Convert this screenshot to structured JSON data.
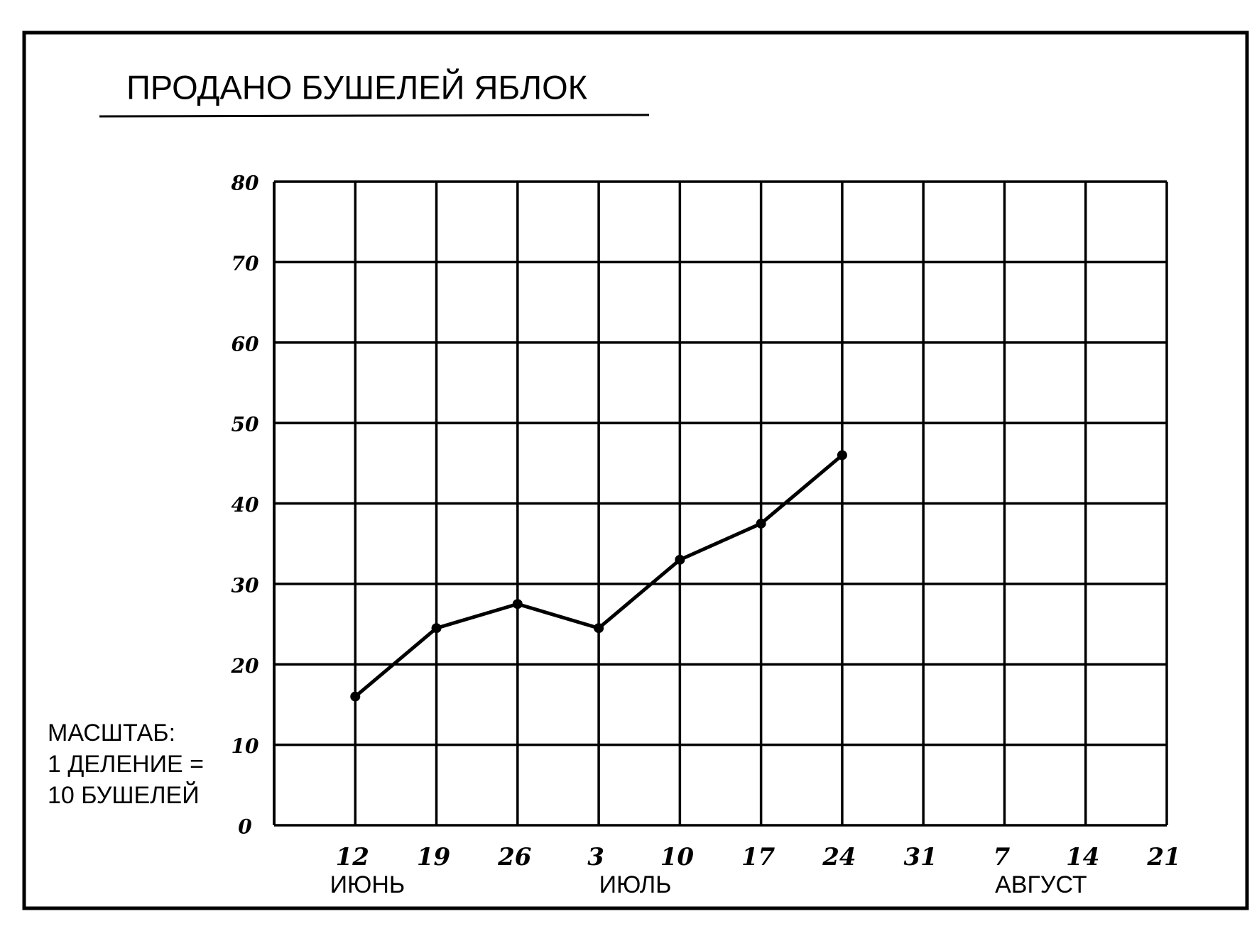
{
  "chart_data": {
    "type": "line",
    "title": "ПРОДАНО БУШЕЛЕЙ ЯБЛОК",
    "categories": [
      "12",
      "19",
      "26",
      "3",
      "10",
      "17",
      "24",
      "31",
      "7",
      "14",
      "21"
    ],
    "x_group_labels": [
      "ИЮНЬ",
      "ИЮЛЬ",
      "АВГУСТ"
    ],
    "values": [
      16,
      24.5,
      27.5,
      24.5,
      33,
      37.5,
      46,
      null,
      null,
      null,
      null
    ],
    "color": "#000000",
    "ylim": [
      0,
      80
    ],
    "yticks": [
      0,
      10,
      20,
      30,
      40,
      50,
      60,
      70,
      80
    ],
    "grid": true,
    "annotations": [
      "МАСШТАБ:",
      "1 ДЕЛЕНИЕ =",
      "10 БУШЕЛЕЙ"
    ]
  }
}
